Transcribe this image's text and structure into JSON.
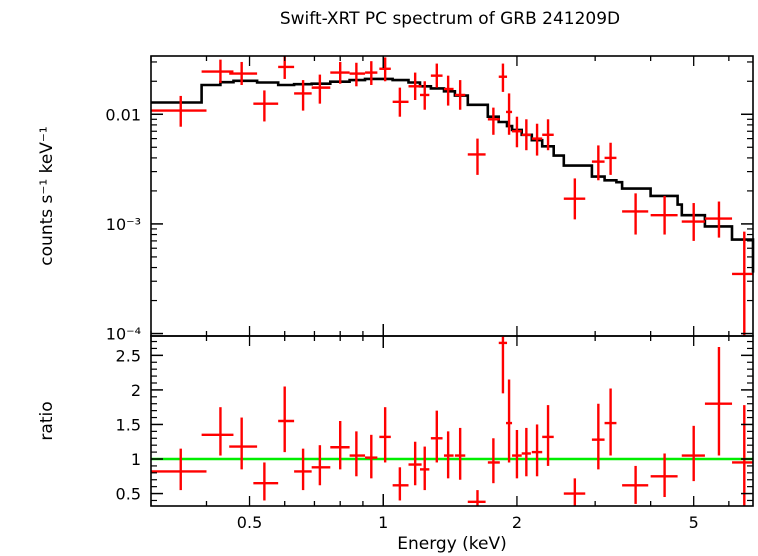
{
  "chart_data": [
    {
      "type": "scatter",
      "title": "Swift-XRT PC spectrum of GRB 241209D",
      "ylabel": "counts s⁻¹ keV⁻¹",
      "xlabel": "",
      "xscale": "log",
      "yscale": "log",
      "xlim": [
        0.3,
        6.8
      ],
      "ylim": [
        9.5e-05,
        0.034
      ],
      "yticks": [
        {
          "value": 0.01,
          "label": "0.01"
        },
        {
          "value": 0.001,
          "label": "10⁻³"
        },
        {
          "value": 0.0001,
          "label": "10⁻⁴"
        }
      ],
      "colors": {
        "data": "#ff0000",
        "model": "#000000"
      },
      "series": [
        {
          "kind": "errorbars",
          "points": [
            {
              "x": 0.35,
              "xlo": 0.3,
              "xhi": 0.4,
              "y": 0.0108,
              "ylo": 0.0077,
              "yhi": 0.0147
            },
            {
              "x": 0.43,
              "xlo": 0.39,
              "xhi": 0.46,
              "y": 0.0245,
              "ylo": 0.0193,
              "yhi": 0.0315
            },
            {
              "x": 0.48,
              "xlo": 0.45,
              "xhi": 0.52,
              "y": 0.0235,
              "ylo": 0.0185,
              "yhi": 0.03
            },
            {
              "x": 0.54,
              "xlo": 0.51,
              "xhi": 0.58,
              "y": 0.0125,
              "ylo": 0.0086,
              "yhi": 0.0165
            },
            {
              "x": 0.6,
              "xlo": 0.58,
              "xhi": 0.63,
              "y": 0.027,
              "ylo": 0.021,
              "yhi": 0.034
            },
            {
              "x": 0.66,
              "xlo": 0.63,
              "xhi": 0.69,
              "y": 0.0155,
              "ylo": 0.0108,
              "yhi": 0.0205
            },
            {
              "x": 0.72,
              "xlo": 0.69,
              "xhi": 0.76,
              "y": 0.0175,
              "ylo": 0.0125,
              "yhi": 0.023
            },
            {
              "x": 0.8,
              "xlo": 0.76,
              "xhi": 0.84,
              "y": 0.024,
              "ylo": 0.019,
              "yhi": 0.03
            },
            {
              "x": 0.87,
              "xlo": 0.84,
              "xhi": 0.91,
              "y": 0.0235,
              "ylo": 0.018,
              "yhi": 0.0295
            },
            {
              "x": 0.94,
              "xlo": 0.91,
              "xhi": 0.97,
              "y": 0.024,
              "ylo": 0.0185,
              "yhi": 0.0305
            },
            {
              "x": 1.01,
              "xlo": 0.98,
              "xhi": 1.04,
              "y": 0.026,
              "ylo": 0.02,
              "yhi": 0.033
            },
            {
              "x": 1.09,
              "xlo": 1.05,
              "xhi": 1.14,
              "y": 0.013,
              "ylo": 0.0095,
              "yhi": 0.0175
            },
            {
              "x": 1.18,
              "xlo": 1.14,
              "xhi": 1.22,
              "y": 0.018,
              "ylo": 0.0135,
              "yhi": 0.024
            },
            {
              "x": 1.24,
              "xlo": 1.21,
              "xhi": 1.27,
              "y": 0.015,
              "ylo": 0.011,
              "yhi": 0.02
            },
            {
              "x": 1.32,
              "xlo": 1.28,
              "xhi": 1.36,
              "y": 0.0225,
              "ylo": 0.0175,
              "yhi": 0.029
            },
            {
              "x": 1.4,
              "xlo": 1.37,
              "xhi": 1.44,
              "y": 0.017,
              "ylo": 0.012,
              "yhi": 0.0225
            },
            {
              "x": 1.49,
              "xlo": 1.45,
              "xhi": 1.53,
              "y": 0.015,
              "ylo": 0.011,
              "yhi": 0.0205
            },
            {
              "x": 1.63,
              "xlo": 1.55,
              "xhi": 1.7,
              "y": 0.0043,
              "ylo": 0.0028,
              "yhi": 0.006
            },
            {
              "x": 1.77,
              "xlo": 1.72,
              "xhi": 1.83,
              "y": 0.009,
              "ylo": 0.0065,
              "yhi": 0.0115
            },
            {
              "x": 1.86,
              "xlo": 1.82,
              "xhi": 1.9,
              "y": 0.022,
              "ylo": 0.016,
              "yhi": 0.029
            },
            {
              "x": 1.92,
              "xlo": 1.89,
              "xhi": 1.95,
              "y": 0.0105,
              "ylo": 0.0065,
              "yhi": 0.0155
            },
            {
              "x": 2.0,
              "xlo": 1.95,
              "xhi": 2.05,
              "y": 0.007,
              "ylo": 0.005,
              "yhi": 0.0095
            },
            {
              "x": 2.1,
              "xlo": 2.05,
              "xhi": 2.15,
              "y": 0.0065,
              "ylo": 0.0047,
              "yhi": 0.009
            },
            {
              "x": 2.22,
              "xlo": 2.16,
              "xhi": 2.28,
              "y": 0.006,
              "ylo": 0.0042,
              "yhi": 0.0082
            },
            {
              "x": 2.35,
              "xlo": 2.28,
              "xhi": 2.42,
              "y": 0.0065,
              "ylo": 0.0047,
              "yhi": 0.009
            },
            {
              "x": 2.7,
              "xlo": 2.55,
              "xhi": 2.85,
              "y": 0.0017,
              "ylo": 0.0011,
              "yhi": 0.0026
            },
            {
              "x": 3.05,
              "xlo": 2.95,
              "xhi": 3.15,
              "y": 0.0037,
              "ylo": 0.0025,
              "yhi": 0.0052
            },
            {
              "x": 3.25,
              "xlo": 3.15,
              "xhi": 3.35,
              "y": 0.004,
              "ylo": 0.0028,
              "yhi": 0.0055
            },
            {
              "x": 3.7,
              "xlo": 3.45,
              "xhi": 3.95,
              "y": 0.0013,
              "ylo": 0.0008,
              "yhi": 0.0019
            },
            {
              "x": 4.3,
              "xlo": 4.0,
              "xhi": 4.6,
              "y": 0.0012,
              "ylo": 0.0008,
              "yhi": 0.0018
            },
            {
              "x": 5.0,
              "xlo": 4.7,
              "xhi": 5.3,
              "y": 0.00105,
              "ylo": 0.0007,
              "yhi": 0.00155
            },
            {
              "x": 5.7,
              "xlo": 5.3,
              "xhi": 6.1,
              "y": 0.00112,
              "ylo": 0.00075,
              "yhi": 0.0016
            },
            {
              "x": 6.5,
              "xlo": 6.1,
              "xhi": 6.8,
              "y": 0.00035,
              "ylo": 9.5e-05,
              "yhi": 0.00085
            }
          ]
        },
        {
          "kind": "step",
          "edges": [
            0.3,
            0.39,
            0.43,
            0.46,
            0.52,
            0.58,
            0.63,
            0.69,
            0.76,
            0.84,
            0.91,
            0.98,
            1.05,
            1.14,
            1.21,
            1.28,
            1.37,
            1.45,
            1.55,
            1.72,
            1.82,
            1.9,
            1.95,
            2.05,
            2.16,
            2.28,
            2.42,
            2.55,
            2.95,
            3.15,
            3.35,
            3.45,
            4.0,
            4.6,
            4.7,
            5.3,
            6.1,
            6.8
          ],
          "values": [
            0.0128,
            0.0185,
            0.0196,
            0.0202,
            0.0195,
            0.0185,
            0.0188,
            0.019,
            0.0198,
            0.0205,
            0.021,
            0.021,
            0.0205,
            0.0195,
            0.018,
            0.0172,
            0.0162,
            0.0148,
            0.0122,
            0.0095,
            0.0085,
            0.0078,
            0.0072,
            0.0065,
            0.0058,
            0.0051,
            0.0042,
            0.0034,
            0.0027,
            0.0025,
            0.0024,
            0.0021,
            0.0018,
            0.0015,
            0.0012,
            0.00095,
            0.00072,
            0.00036
          ]
        }
      ]
    },
    {
      "type": "scatter",
      "title": "",
      "ylabel": "ratio",
      "xlabel": "Energy (keV)",
      "xscale": "log",
      "xlim": [
        0.3,
        6.8
      ],
      "ylim": [
        0.32,
        2.78
      ],
      "yticks": [
        {
          "value": 0.5,
          "label": "0.5"
        },
        {
          "value": 1,
          "label": "1"
        },
        {
          "value": 1.5,
          "label": "1.5"
        },
        {
          "value": 2,
          "label": "2"
        },
        {
          "value": 2.5,
          "label": "2.5"
        }
      ],
      "xticks": [
        {
          "value": 0.5,
          "label": "0.5"
        },
        {
          "value": 1,
          "label": "1"
        },
        {
          "value": 2,
          "label": "2"
        },
        {
          "value": 5,
          "label": "5"
        }
      ],
      "colors": {
        "data": "#ff0000",
        "reference": "#00ee00"
      },
      "reference_line": 1,
      "series": [
        {
          "kind": "errorbars",
          "points": [
            {
              "x": 0.35,
              "xlo": 0.3,
              "xhi": 0.4,
              "y": 0.82,
              "ylo": 0.55,
              "yhi": 1.15
            },
            {
              "x": 0.43,
              "xlo": 0.39,
              "xhi": 0.46,
              "y": 1.35,
              "ylo": 1.05,
              "yhi": 1.75
            },
            {
              "x": 0.48,
              "xlo": 0.45,
              "xhi": 0.52,
              "y": 1.18,
              "ylo": 0.85,
              "yhi": 1.6
            },
            {
              "x": 0.54,
              "xlo": 0.51,
              "xhi": 0.58,
              "y": 0.65,
              "ylo": 0.4,
              "yhi": 0.95
            },
            {
              "x": 0.6,
              "xlo": 0.58,
              "xhi": 0.63,
              "y": 1.55,
              "ylo": 1.1,
              "yhi": 2.05
            },
            {
              "x": 0.66,
              "xlo": 0.63,
              "xhi": 0.69,
              "y": 0.82,
              "ylo": 0.55,
              "yhi": 1.15
            },
            {
              "x": 0.72,
              "xlo": 0.69,
              "xhi": 0.76,
              "y": 0.88,
              "ylo": 0.62,
              "yhi": 1.2
            },
            {
              "x": 0.8,
              "xlo": 0.76,
              "xhi": 0.84,
              "y": 1.17,
              "ylo": 0.85,
              "yhi": 1.55
            },
            {
              "x": 0.87,
              "xlo": 0.84,
              "xhi": 0.91,
              "y": 1.05,
              "ylo": 0.75,
              "yhi": 1.4
            },
            {
              "x": 0.94,
              "xlo": 0.91,
              "xhi": 0.97,
              "y": 1.02,
              "ylo": 0.72,
              "yhi": 1.35
            },
            {
              "x": 1.01,
              "xlo": 0.98,
              "xhi": 1.04,
              "y": 1.32,
              "ylo": 0.95,
              "yhi": 1.75
            },
            {
              "x": 1.09,
              "xlo": 1.05,
              "xhi": 1.14,
              "y": 0.62,
              "ylo": 0.4,
              "yhi": 0.88
            },
            {
              "x": 1.18,
              "xlo": 1.14,
              "xhi": 1.22,
              "y": 0.92,
              "ylo": 0.62,
              "yhi": 1.25
            },
            {
              "x": 1.24,
              "xlo": 1.21,
              "xhi": 1.27,
              "y": 0.85,
              "ylo": 0.55,
              "yhi": 1.18
            },
            {
              "x": 1.32,
              "xlo": 1.28,
              "xhi": 1.36,
              "y": 1.3,
              "ylo": 0.95,
              "yhi": 1.7
            },
            {
              "x": 1.4,
              "xlo": 1.37,
              "xhi": 1.44,
              "y": 1.05,
              "ylo": 0.72,
              "yhi": 1.4
            },
            {
              "x": 1.49,
              "xlo": 1.45,
              "xhi": 1.53,
              "y": 1.05,
              "ylo": 0.7,
              "yhi": 1.45
            },
            {
              "x": 1.63,
              "xlo": 1.55,
              "xhi": 1.7,
              "y": 0.38,
              "ylo": 0.2,
              "yhi": 0.55
            },
            {
              "x": 1.77,
              "xlo": 1.72,
              "xhi": 1.83,
              "y": 0.95,
              "ylo": 0.65,
              "yhi": 1.3
            },
            {
              "x": 1.86,
              "xlo": 1.82,
              "xhi": 1.9,
              "y": 2.68,
              "ylo": 1.95,
              "yhi": 2.78
            },
            {
              "x": 1.92,
              "xlo": 1.89,
              "xhi": 1.95,
              "y": 1.52,
              "ylo": 0.95,
              "yhi": 2.15
            },
            {
              "x": 2.0,
              "xlo": 1.95,
              "xhi": 2.05,
              "y": 1.05,
              "ylo": 0.72,
              "yhi": 1.42
            },
            {
              "x": 2.1,
              "xlo": 2.05,
              "xhi": 2.15,
              "y": 1.08,
              "ylo": 0.75,
              "yhi": 1.45
            },
            {
              "x": 2.22,
              "xlo": 2.16,
              "xhi": 2.28,
              "y": 1.1,
              "ylo": 0.75,
              "yhi": 1.5
            },
            {
              "x": 2.35,
              "xlo": 2.28,
              "xhi": 2.42,
              "y": 1.32,
              "ylo": 0.9,
              "yhi": 1.78
            },
            {
              "x": 2.7,
              "xlo": 2.55,
              "xhi": 2.85,
              "y": 0.5,
              "ylo": 0.3,
              "yhi": 0.72
            },
            {
              "x": 3.05,
              "xlo": 2.95,
              "xhi": 3.15,
              "y": 1.28,
              "ylo": 0.85,
              "yhi": 1.8
            },
            {
              "x": 3.25,
              "xlo": 3.15,
              "xhi": 3.35,
              "y": 1.52,
              "ylo": 1.05,
              "yhi": 2.02
            },
            {
              "x": 3.7,
              "xlo": 3.45,
              "xhi": 3.95,
              "y": 0.62,
              "ylo": 0.35,
              "yhi": 0.9
            },
            {
              "x": 4.3,
              "xlo": 4.0,
              "xhi": 4.6,
              "y": 0.75,
              "ylo": 0.45,
              "yhi": 1.08
            },
            {
              "x": 5.0,
              "xlo": 4.7,
              "xhi": 5.3,
              "y": 1.05,
              "ylo": 0.68,
              "yhi": 1.48
            },
            {
              "x": 5.7,
              "xlo": 5.3,
              "xhi": 6.1,
              "y": 1.8,
              "ylo": 1.05,
              "yhi": 2.62
            },
            {
              "x": 6.5,
              "xlo": 6.1,
              "xhi": 6.8,
              "y": 0.95,
              "ylo": 0.32,
              "yhi": 1.78
            }
          ]
        }
      ]
    }
  ]
}
